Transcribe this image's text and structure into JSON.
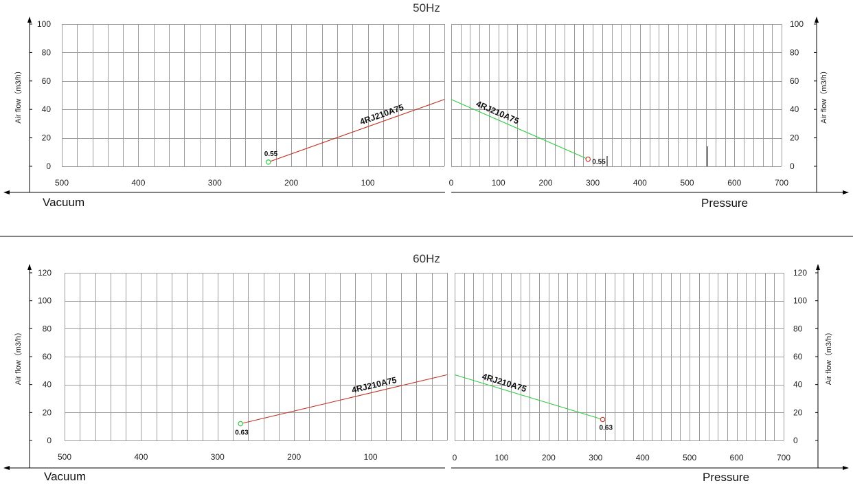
{
  "chart_data": [
    {
      "type": "line",
      "title": "50Hz",
      "panels": [
        {
          "side": "vacuum",
          "xlabel": "Vacuum",
          "ylabel": "Air flow（m3/h）",
          "xlim": [
            500,
            0
          ],
          "ylim": [
            0,
            100
          ],
          "x_ticks": [
            500,
            400,
            300,
            200,
            100
          ],
          "y_ticks": [
            0,
            20,
            40,
            60,
            80,
            100
          ],
          "series": [
            {
              "name": "4RJ210A75",
              "color": "#c0392b",
              "points": [
                [
                  230,
                  3
                ],
                [
                  0,
                  47
                ]
              ],
              "endpoint": {
                "x": 230,
                "y": 3,
                "label": "0.55",
                "marker_color": "#2ecc40"
              }
            }
          ]
        },
        {
          "side": "pressure",
          "xlabel": "Pressure",
          "ylabel": "Air flow（m3/h）",
          "xlim": [
            0,
            700
          ],
          "ylim": [
            0,
            100
          ],
          "x_ticks": [
            0,
            100,
            200,
            300,
            400,
            500,
            600,
            700
          ],
          "y_ticks": [
            0,
            20,
            40,
            60,
            80,
            100
          ],
          "series": [
            {
              "name": "4RJ210A75",
              "color": "#2ecc40",
              "points": [
                [
                  0,
                  47
                ],
                [
                  290,
                  5
                ]
              ],
              "endpoint": {
                "x": 290,
                "y": 5,
                "label": "0.55",
                "marker_color": "#c0392b"
              }
            }
          ]
        }
      ]
    },
    {
      "type": "line",
      "title": "60Hz",
      "panels": [
        {
          "side": "vacuum",
          "xlabel": "Vacuum",
          "ylabel": "Air flow（m3/h）",
          "xlim": [
            500,
            0
          ],
          "ylim": [
            0,
            120
          ],
          "x_ticks": [
            500,
            400,
            300,
            200,
            100
          ],
          "y_ticks": [
            0,
            20,
            40,
            60,
            80,
            100,
            120
          ],
          "series": [
            {
              "name": "4RJ210A75",
              "color": "#c0392b",
              "points": [
                [
                  270,
                  12
                ],
                [
                  0,
                  47
                ]
              ],
              "endpoint": {
                "x": 270,
                "y": 12,
                "label": "0.63",
                "marker_color": "#2ecc40"
              }
            }
          ]
        },
        {
          "side": "pressure",
          "xlabel": "Pressure",
          "ylabel": "Air flow（m3/h）",
          "xlim": [
            0,
            700
          ],
          "ylim": [
            0,
            120
          ],
          "x_ticks": [
            0,
            100,
            200,
            300,
            400,
            500,
            600,
            700
          ],
          "y_ticks": [
            0,
            20,
            40,
            60,
            80,
            100,
            120
          ],
          "series": [
            {
              "name": "4RJ210A75",
              "color": "#2ecc40",
              "points": [
                [
                  0,
                  47
                ],
                [
                  315,
                  15
                ]
              ],
              "endpoint": {
                "x": 315,
                "y": 15,
                "label": "0.63",
                "marker_color": "#c0392b"
              }
            }
          ]
        }
      ]
    }
  ]
}
